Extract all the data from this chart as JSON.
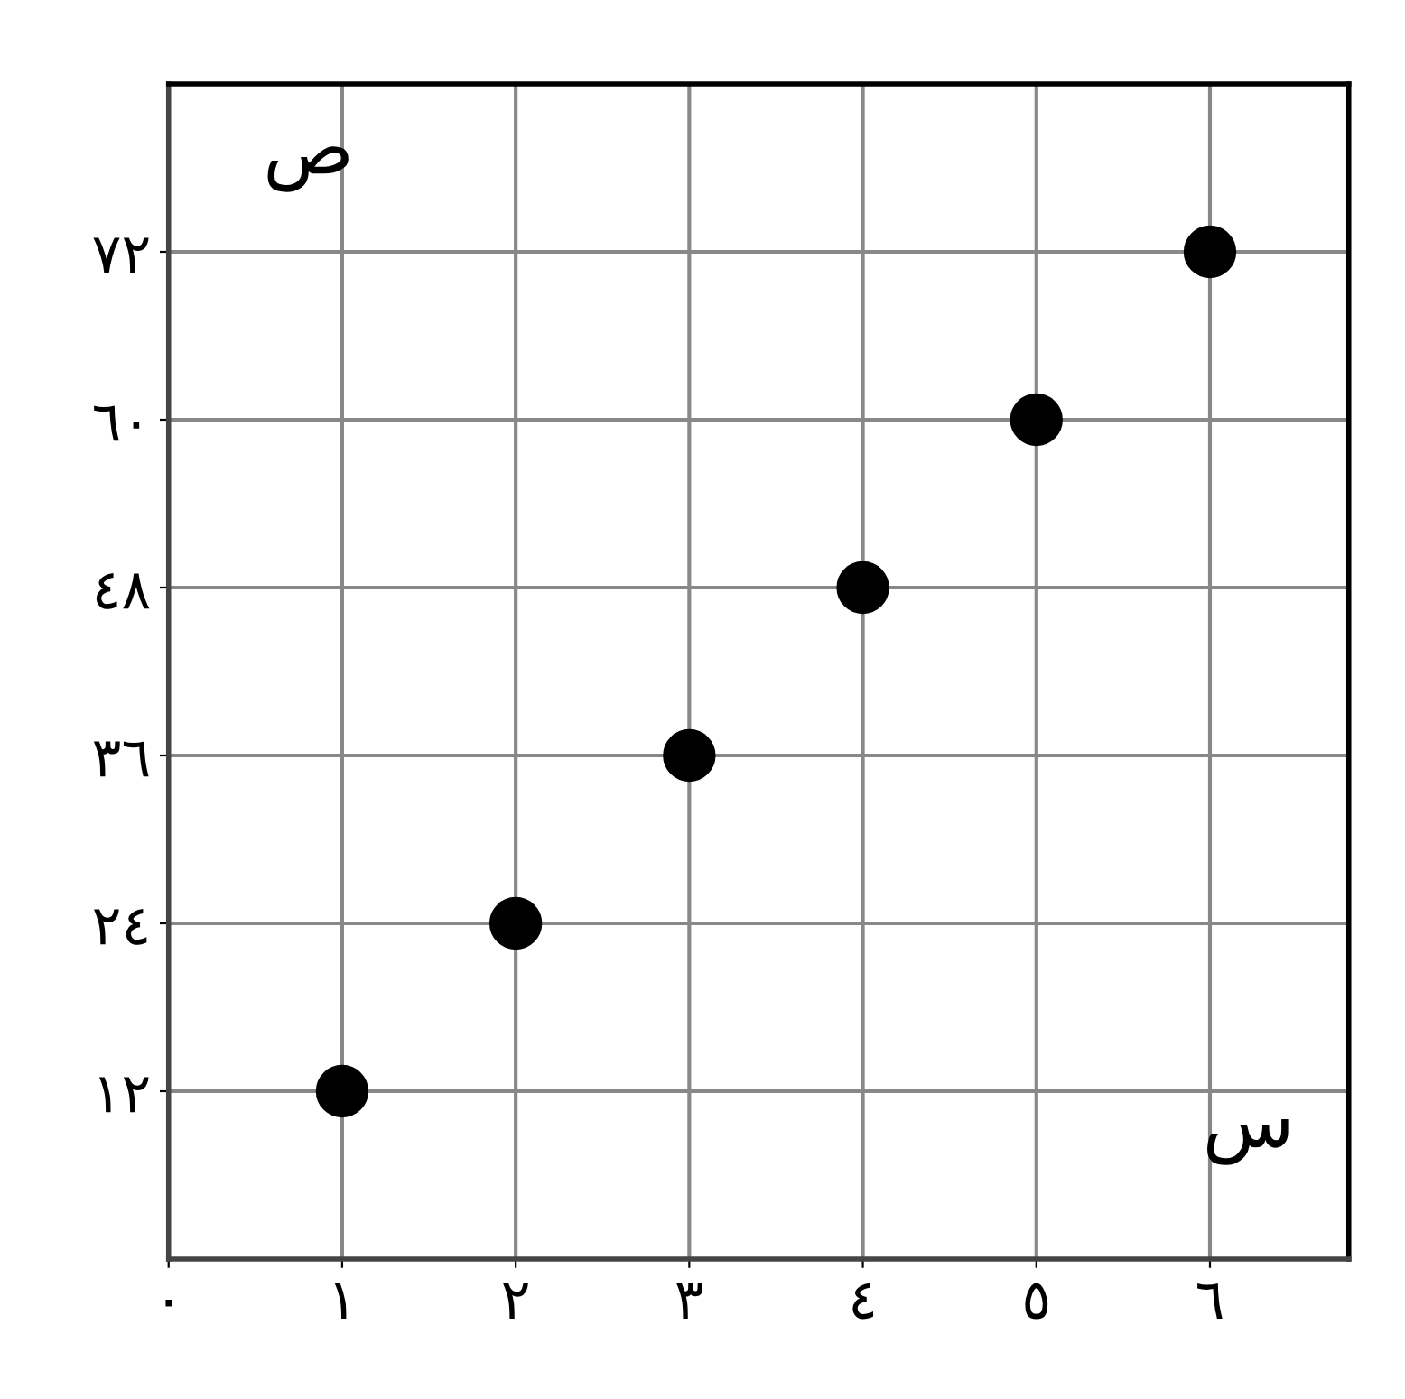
{
  "chart_data": {
    "type": "scatter",
    "xlabel": "س",
    "ylabel": "ص",
    "x": [
      1,
      2,
      3,
      4,
      5,
      6
    ],
    "series": [
      {
        "color": "#000000",
        "values": [
          12,
          24,
          36,
          48,
          60,
          72
        ]
      }
    ],
    "xlim": [
      0,
      6.8
    ],
    "ylim": [
      0,
      84
    ],
    "xticks": [
      {
        "value": 0,
        "label": "٠"
      },
      {
        "value": 1,
        "label": "١"
      },
      {
        "value": 2,
        "label": "٢"
      },
      {
        "value": 3,
        "label": "٣"
      },
      {
        "value": 4,
        "label": "٤"
      },
      {
        "value": 5,
        "label": "٥"
      },
      {
        "value": 6,
        "label": "٦"
      }
    ],
    "yticks": [
      {
        "value": 12,
        "label": "١٢"
      },
      {
        "value": 24,
        "label": "٢٤"
      },
      {
        "value": 36,
        "label": "٣٦"
      },
      {
        "value": 48,
        "label": "٤٨"
      },
      {
        "value": 60,
        "label": "٦٠"
      },
      {
        "value": 72,
        "label": "٧٢"
      }
    ],
    "grid": true,
    "marker": "circle"
  }
}
